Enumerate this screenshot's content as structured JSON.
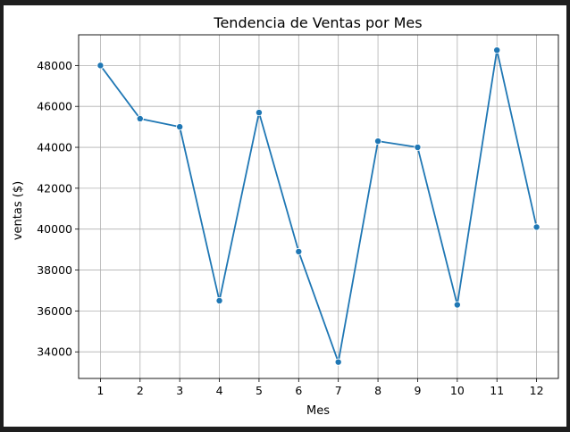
{
  "chart_data": {
    "type": "line",
    "title": "Tendencia de Ventas por Mes",
    "xlabel": "Mes",
    "ylabel": "ventas ($)",
    "x": [
      1,
      2,
      3,
      4,
      5,
      6,
      7,
      8,
      9,
      10,
      11,
      12
    ],
    "x_tick_labels": [
      "1",
      "2",
      "3",
      "4",
      "5",
      "6",
      "7",
      "8",
      "9",
      "10",
      "11",
      "12"
    ],
    "y_ticks": [
      34000,
      36000,
      38000,
      40000,
      42000,
      44000,
      46000,
      48000
    ],
    "y_tick_labels": [
      "34000",
      "36000",
      "38000",
      "40000",
      "42000",
      "44000",
      "46000",
      "48000"
    ],
    "xlim": [
      0.45,
      12.55
    ],
    "ylim": [
      32700,
      49500
    ],
    "grid": true,
    "series": [
      {
        "color": "#1f77b4",
        "marker": "circle",
        "values": [
          48000,
          45400,
          45000,
          36500,
          45700,
          38900,
          33500,
          44300,
          44000,
          36300,
          48750,
          40100
        ]
      }
    ]
  }
}
